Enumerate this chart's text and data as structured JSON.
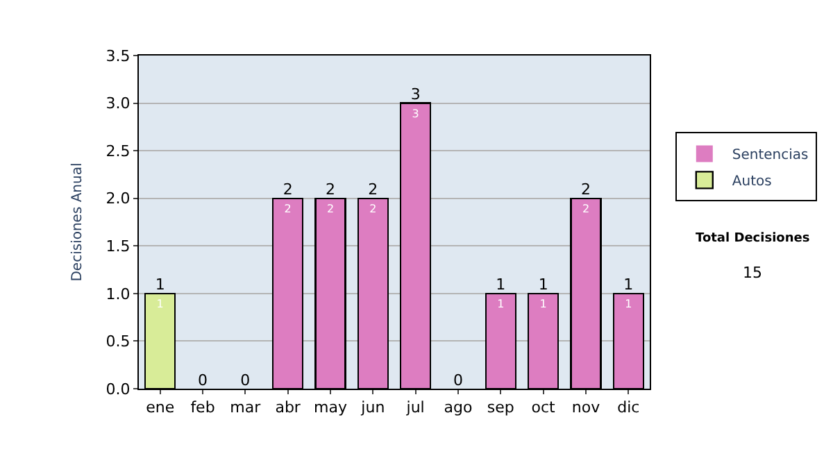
{
  "chart_data": {
    "type": "bar",
    "ylabel": "Decisiones Anual",
    "categories": [
      "ene",
      "feb",
      "mar",
      "abr",
      "may",
      "jun",
      "jul",
      "ago",
      "sep",
      "oct",
      "nov",
      "dic"
    ],
    "stacked": true,
    "series": [
      {
        "name": "Sentencias",
        "color": "#dd7dc1",
        "values": [
          0,
          0,
          0,
          2,
          2,
          2,
          3,
          0,
          1,
          1,
          2,
          1
        ],
        "value_labels": [
          null,
          null,
          null,
          "2",
          "2",
          "2",
          "3",
          null,
          "1",
          "1",
          "2",
          "1"
        ]
      },
      {
        "name": "Autos",
        "color": "#d8ec98",
        "values": [
          1,
          0,
          0,
          0,
          0,
          0,
          0,
          0,
          0,
          0,
          0,
          0
        ],
        "value_labels": [
          "1",
          null,
          null,
          null,
          null,
          null,
          null,
          null,
          null,
          null,
          null,
          null
        ]
      }
    ],
    "totals": [
      "1",
      "0",
      "0",
      "2",
      "2",
      "2",
      "3",
      "0",
      "1",
      "1",
      "2",
      "1"
    ],
    "ylim": [
      0,
      3.5
    ],
    "yticks": [
      {
        "value": 0,
        "label": "0.0"
      },
      {
        "value": 0.5,
        "label": "0.5"
      },
      {
        "value": 1,
        "label": "1.0"
      },
      {
        "value": 1.5,
        "label": "1.5"
      },
      {
        "value": 2,
        "label": "2.0"
      },
      {
        "value": 2.5,
        "label": "2.5"
      },
      {
        "value": 3,
        "label": "3.0"
      },
      {
        "value": 3.5,
        "label": "3.5"
      }
    ],
    "grid": "y",
    "legend": "right",
    "annotations": [
      "Total Decisiones",
      "15"
    ]
  }
}
